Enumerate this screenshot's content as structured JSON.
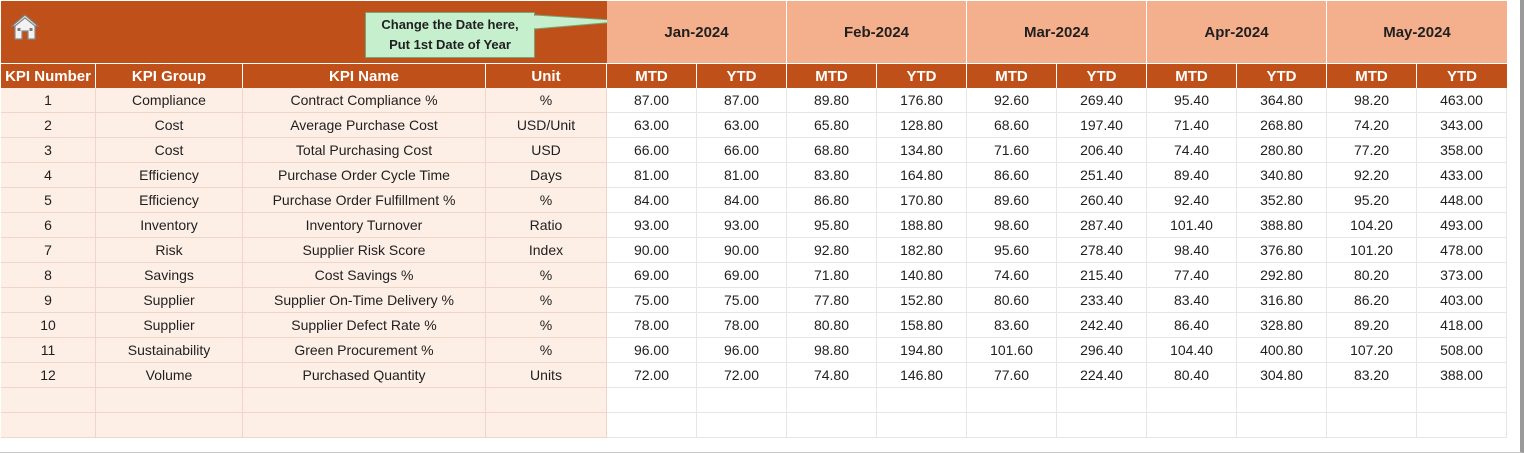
{
  "note": {
    "line1": "Change the Date here,",
    "line2": "Put 1st Date of Year"
  },
  "months": [
    "Jan-2024",
    "Feb-2024",
    "Mar-2024",
    "Apr-2024",
    "May-2024"
  ],
  "headers": {
    "kpi_number": "KPI Number",
    "kpi_group": "KPI Group",
    "kpi_name": "KPI Name",
    "unit": "Unit",
    "mtd": "MTD",
    "ytd": "YTD"
  },
  "rows": [
    {
      "num": "1",
      "group": "Compliance",
      "name": "Contract Compliance %",
      "unit": "%",
      "values": [
        "87.00",
        "87.00",
        "89.80",
        "176.80",
        "92.60",
        "269.40",
        "95.40",
        "364.80",
        "98.20",
        "463.00"
      ]
    },
    {
      "num": "2",
      "group": "Cost",
      "name": "Average Purchase Cost",
      "unit": "USD/Unit",
      "values": [
        "63.00",
        "63.00",
        "65.80",
        "128.80",
        "68.60",
        "197.40",
        "71.40",
        "268.80",
        "74.20",
        "343.00"
      ]
    },
    {
      "num": "3",
      "group": "Cost",
      "name": "Total Purchasing Cost",
      "unit": "USD",
      "values": [
        "66.00",
        "66.00",
        "68.80",
        "134.80",
        "71.60",
        "206.40",
        "74.40",
        "280.80",
        "77.20",
        "358.00"
      ]
    },
    {
      "num": "4",
      "group": "Efficiency",
      "name": "Purchase Order Cycle Time",
      "unit": "Days",
      "values": [
        "81.00",
        "81.00",
        "83.80",
        "164.80",
        "86.60",
        "251.40",
        "89.40",
        "340.80",
        "92.20",
        "433.00"
      ]
    },
    {
      "num": "5",
      "group": "Efficiency",
      "name": "Purchase Order Fulfillment %",
      "unit": "%",
      "values": [
        "84.00",
        "84.00",
        "86.80",
        "170.80",
        "89.60",
        "260.40",
        "92.40",
        "352.80",
        "95.20",
        "448.00"
      ]
    },
    {
      "num": "6",
      "group": "Inventory",
      "name": "Inventory Turnover",
      "unit": "Ratio",
      "values": [
        "93.00",
        "93.00",
        "95.80",
        "188.80",
        "98.60",
        "287.40",
        "101.40",
        "388.80",
        "104.20",
        "493.00"
      ]
    },
    {
      "num": "7",
      "group": "Risk",
      "name": "Supplier Risk Score",
      "unit": "Index",
      "values": [
        "90.00",
        "90.00",
        "92.80",
        "182.80",
        "95.60",
        "278.40",
        "98.40",
        "376.80",
        "101.20",
        "478.00"
      ]
    },
    {
      "num": "8",
      "group": "Savings",
      "name": "Cost Savings %",
      "unit": "%",
      "values": [
        "69.00",
        "69.00",
        "71.80",
        "140.80",
        "74.60",
        "215.40",
        "77.40",
        "292.80",
        "80.20",
        "373.00"
      ]
    },
    {
      "num": "9",
      "group": "Supplier",
      "name": "Supplier On-Time Delivery %",
      "unit": "%",
      "values": [
        "75.00",
        "75.00",
        "77.80",
        "152.80",
        "80.60",
        "233.40",
        "83.40",
        "316.80",
        "86.20",
        "403.00"
      ]
    },
    {
      "num": "10",
      "group": "Supplier",
      "name": "Supplier Defect Rate %",
      "unit": "%",
      "values": [
        "78.00",
        "78.00",
        "80.80",
        "158.80",
        "83.60",
        "242.40",
        "86.40",
        "328.80",
        "89.20",
        "418.00"
      ]
    },
    {
      "num": "11",
      "group": "Sustainability",
      "name": "Green Procurement %",
      "unit": "%",
      "values": [
        "96.00",
        "96.00",
        "98.80",
        "194.80",
        "101.60",
        "296.40",
        "104.40",
        "400.80",
        "107.20",
        "508.00"
      ]
    },
    {
      "num": "12",
      "group": "Volume",
      "name": "Purchased Quantity",
      "unit": "Units",
      "values": [
        "72.00",
        "72.00",
        "74.80",
        "146.80",
        "77.60",
        "224.40",
        "80.40",
        "304.80",
        "83.20",
        "388.00"
      ]
    },
    {
      "num": "",
      "group": "",
      "name": "",
      "unit": "",
      "values": [
        "",
        "",
        "",
        "",
        "",
        "",
        "",
        "",
        "",
        ""
      ]
    },
    {
      "num": "",
      "group": "",
      "name": "",
      "unit": "",
      "values": [
        "",
        "",
        "",
        "",
        "",
        "",
        "",
        "",
        "",
        ""
      ]
    }
  ],
  "icons": {
    "home": "home-icon"
  },
  "colors": {
    "header_dark": "#c0501a",
    "month_band": "#f4b08c",
    "left_fill": "#fdeee6",
    "note_fill": "#c6efce"
  }
}
